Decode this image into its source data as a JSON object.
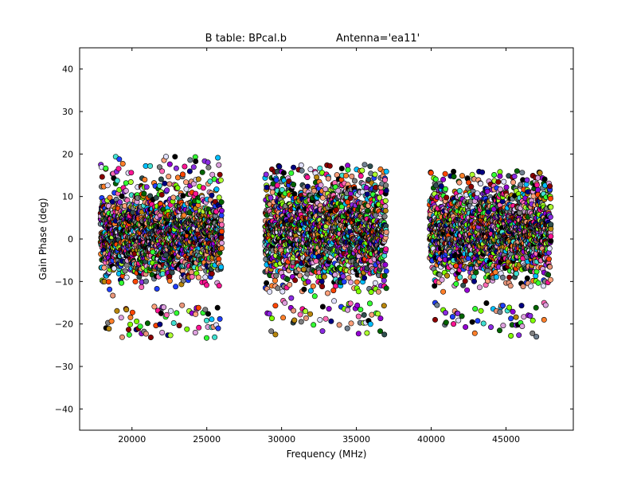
{
  "chart_data": {
    "type": "scatter",
    "title": "B table: BPcal.b",
    "title_right": "Antenna='ea11'",
    "xlabel": "Frequency (MHz)",
    "ylabel": "Gain Phase (deg)",
    "xlim": [
      16500,
      49500
    ],
    "ylim": [
      -45,
      45
    ],
    "xticks": [
      20000,
      25000,
      30000,
      35000,
      40000,
      45000
    ],
    "yticks": [
      -40,
      -30,
      -20,
      -10,
      0,
      10,
      20,
      30,
      40
    ],
    "grid": false,
    "legend": "none",
    "marker": "circle-black-edge",
    "bands": [
      {
        "x_start": 17900,
        "x_end": 26000,
        "spw_count": 8,
        "typical_range": [
          -8,
          10
        ],
        "extreme_low": -23.5,
        "extreme_high": 19.5
      },
      {
        "x_start": 28900,
        "x_end": 37000,
        "spw_count": 8,
        "typical_range": [
          -9,
          12
        ],
        "extreme_low": -22.5,
        "extreme_high": 17.5
      },
      {
        "x_start": 39900,
        "x_end": 48000,
        "spw_count": 8,
        "typical_range": [
          -8,
          11
        ],
        "extreme_low": -23,
        "extreme_high": 16
      }
    ],
    "series_colors": [
      "#1f3fff",
      "#ff7f2a",
      "#33ff33",
      "#ff1493",
      "#00bfff",
      "#8b0000",
      "#9400d3",
      "#ffa07a",
      "#2f4f4f",
      "#000080",
      "#7fff00",
      "#dda0dd",
      "#b8860b",
      "#40e0d0",
      "#e9967a",
      "#708090",
      "#ff4500",
      "#adff2f",
      "#e0e0ff",
      "#006400",
      "#ff69b4",
      "#8a2be2",
      "#000000",
      "#808080"
    ]
  }
}
